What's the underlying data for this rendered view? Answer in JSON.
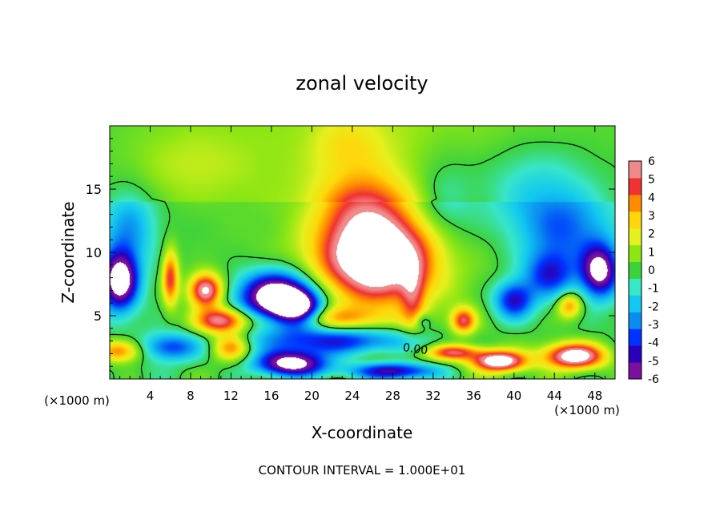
{
  "chart_data": {
    "type": "heatmap",
    "title": "zonal velocity",
    "xlabel": "X-coordinate",
    "ylabel": "Z-coordinate",
    "x_unit_label": "(×1000 m)",
    "x_unit_label_right": "(×1000 m)",
    "xlim": [
      0,
      50
    ],
    "ylim": [
      0,
      20
    ],
    "x_ticks": [
      4,
      8,
      12,
      16,
      20,
      24,
      28,
      32,
      36,
      40,
      44,
      48
    ],
    "y_ticks": [
      5,
      10,
      15
    ],
    "contour_label": "0.00",
    "footer": "CONTOUR INTERVAL = 1.000E+01",
    "colorbar": {
      "min": -6,
      "max": 6,
      "ticks": [
        6,
        5,
        4,
        3,
        2,
        1,
        0,
        -1,
        -2,
        -3,
        -4,
        -5,
        -6
      ],
      "colors": [
        "#7a0fa0",
        "#2a00b8",
        "#0032ff",
        "#0a8cf0",
        "#12c8f0",
        "#38e6c8",
        "#3cd23c",
        "#8ce614",
        "#e6f01e",
        "#ffd70a",
        "#ff8c00",
        "#f03232",
        "#f08a8a"
      ]
    },
    "blobs": [
      {
        "x": 26.5,
        "y": 9.5,
        "rx": 5.5,
        "ry": 3.2,
        "amp": 9
      },
      {
        "x": 25,
        "y": 13.5,
        "rx": 4.5,
        "ry": 3.0,
        "amp": 3.5
      },
      {
        "x": 23.5,
        "y": 18.5,
        "rx": 3.5,
        "ry": 2.2,
        "amp": 1.5
      },
      {
        "x": 16.5,
        "y": 6.5,
        "rx": 3.6,
        "ry": 1.9,
        "amp": -9
      },
      {
        "x": 18.5,
        "y": 5.5,
        "rx": 2.4,
        "ry": 1.4,
        "amp": -7
      },
      {
        "x": 9.5,
        "y": 7.0,
        "rx": 1.6,
        "ry": 1.3,
        "amp": 7
      },
      {
        "x": 11,
        "y": 4.6,
        "rx": 2.5,
        "ry": 1.0,
        "amp": 6
      },
      {
        "x": 6,
        "y": 8,
        "rx": 0.8,
        "ry": 2.2,
        "amp": 5
      },
      {
        "x": 1,
        "y": 7.8,
        "rx": 1.8,
        "ry": 2.3,
        "amp": -8
      },
      {
        "x": 1,
        "y": 2.2,
        "rx": 2.2,
        "ry": 0.9,
        "amp": 4.5
      },
      {
        "x": 6,
        "y": 2.5,
        "rx": 2.8,
        "ry": 1.1,
        "amp": -4
      },
      {
        "x": 12,
        "y": 2.5,
        "rx": 1.8,
        "ry": 1.0,
        "amp": 4
      },
      {
        "x": 18,
        "y": 1.2,
        "rx": 3.5,
        "ry": 1.0,
        "amp": -8
      },
      {
        "x": 22.5,
        "y": 3.0,
        "rx": 8.0,
        "ry": 1.1,
        "amp": -5
      },
      {
        "x": 21,
        "y": 4.8,
        "rx": 6.0,
        "ry": 0.9,
        "amp": 3
      },
      {
        "x": 34,
        "y": 2.1,
        "rx": 2.6,
        "ry": 0.6,
        "amp": 5
      },
      {
        "x": 38.5,
        "y": 1.4,
        "rx": 2.6,
        "ry": 0.8,
        "amp": 8
      },
      {
        "x": 46,
        "y": 1.8,
        "rx": 3.0,
        "ry": 1.0,
        "amp": 8
      },
      {
        "x": 28,
        "y": 0.6,
        "rx": 4.5,
        "ry": 0.7,
        "amp": -6
      },
      {
        "x": 40,
        "y": 6.2,
        "rx": 2.0,
        "ry": 1.5,
        "amp": -5
      },
      {
        "x": 43.5,
        "y": 8.2,
        "rx": 2.5,
        "ry": 1.8,
        "amp": -4
      },
      {
        "x": 48.5,
        "y": 8.5,
        "rx": 1.8,
        "ry": 2.0,
        "amp": -7
      },
      {
        "x": 45.5,
        "y": 5.8,
        "rx": 1.2,
        "ry": 1.0,
        "amp": 4
      },
      {
        "x": 45,
        "y": 11.5,
        "rx": 4.5,
        "ry": 3.0,
        "amp": -3
      },
      {
        "x": 42,
        "y": 15,
        "rx": 6.0,
        "ry": 3.5,
        "amp": -2
      },
      {
        "x": 33,
        "y": 14,
        "rx": 3.0,
        "ry": 4.0,
        "amp": -1.5
      },
      {
        "x": 2,
        "y": 12,
        "rx": 2.5,
        "ry": 3.0,
        "amp": -2.5
      },
      {
        "x": 8,
        "y": 17,
        "rx": 6.0,
        "ry": 3.0,
        "amp": 1.0
      },
      {
        "x": 35,
        "y": 4.6,
        "rx": 1.2,
        "ry": 1.0,
        "amp": 5
      },
      {
        "x": 31,
        "y": 4.6,
        "rx": 0.8,
        "ry": 0.6,
        "amp": -2
      },
      {
        "x": 30,
        "y": 6.5,
        "rx": 1.2,
        "ry": 2.5,
        "amp": 3
      }
    ]
  }
}
